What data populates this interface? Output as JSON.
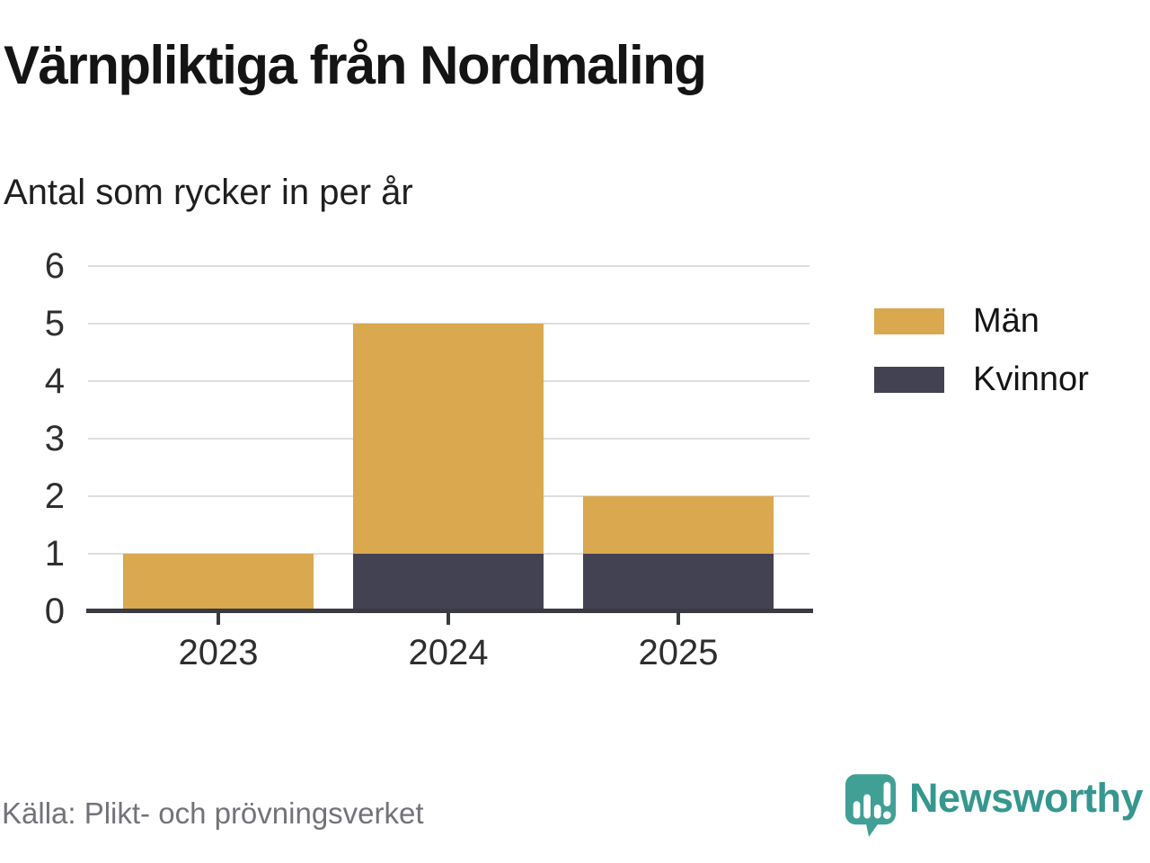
{
  "header": {
    "title": "Värnpliktiga från Nordmaling",
    "subtitle": "Antal som rycker in per år"
  },
  "chart_data": {
    "type": "bar",
    "stacked": true,
    "title": "Värnpliktiga från Nordmaling",
    "subtitle": "Antal som rycker in per år",
    "categories": [
      "2023",
      "2024",
      "2025"
    ],
    "series": [
      {
        "name": "Män",
        "color": "#d9a84f",
        "values": [
          1,
          4,
          1
        ]
      },
      {
        "name": "Kvinnor",
        "color": "#434253",
        "values": [
          0,
          1,
          1
        ]
      }
    ],
    "totals": [
      1,
      5,
      2
    ],
    "xlabel": "",
    "ylabel": "",
    "ylim": [
      0,
      6
    ],
    "yticks": [
      0,
      1,
      2,
      3,
      4,
      5,
      6
    ],
    "grid": true,
    "legend_position": "right",
    "colors": {
      "grid": "#dedede",
      "axis": "#3a3a42",
      "tick_text": "#2e2e2e"
    }
  },
  "footer": {
    "source": "Källa: Plikt- och prövningsverket",
    "brand_name": "Newsworthy",
    "brand_color": "#35978f"
  }
}
